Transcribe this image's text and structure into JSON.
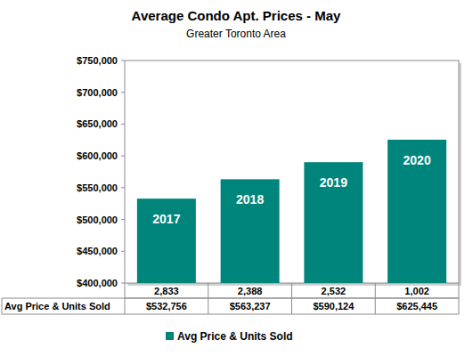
{
  "chart_data": {
    "type": "bar",
    "title": "Average Condo Apt. Prices - May",
    "subtitle": "Greater Toronto Area",
    "categories": [
      "2017",
      "2018",
      "2019",
      "2020"
    ],
    "series": [
      {
        "name": "Avg Price & Units Sold",
        "color": "#00857c",
        "values": [
          532756,
          563237,
          590124,
          625445
        ],
        "value_labels": [
          "$532,756",
          "$563,237",
          "$590,124",
          "$625,445"
        ]
      }
    ],
    "units_sold": [
      2833,
      2388,
      2532,
      1002
    ],
    "units_sold_labels": [
      "2,833",
      "2,388",
      "2,532",
      "1,002"
    ],
    "ylim": [
      400000,
      750000
    ],
    "yticks": [
      {
        "value": 400000,
        "label": "$400,000"
      },
      {
        "value": 450000,
        "label": "$450,000"
      },
      {
        "value": 500000,
        "label": "$500,000"
      },
      {
        "value": 550000,
        "label": "$550,000"
      },
      {
        "value": 600000,
        "label": "$600,000"
      },
      {
        "value": 650000,
        "label": "$650,000"
      },
      {
        "value": 700000,
        "label": "$700,000"
      },
      {
        "value": 750000,
        "label": "$750,000"
      }
    ],
    "grid": false,
    "legend": "bottom"
  }
}
